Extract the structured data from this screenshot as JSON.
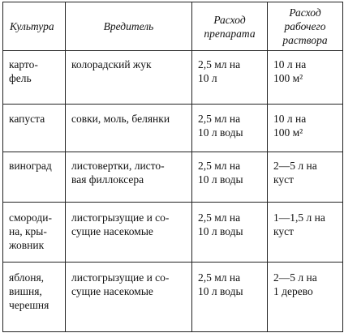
{
  "headers": {
    "culture": "Культура",
    "pest": "Вредитель",
    "dose_line1": "Расход",
    "dose_line2": "препарата",
    "solution_line1": "Расход",
    "solution_line2": "рабочего",
    "solution_line3": "раствора"
  },
  "rows": [
    {
      "culture": [
        "карто-",
        "фель"
      ],
      "pest": [
        "колорадский жук"
      ],
      "dose": [
        "2,5 мл на",
        "10 л"
      ],
      "solution": [
        "10 л на",
        "100 м²"
      ]
    },
    {
      "culture": [
        "капуста"
      ],
      "pest": [
        "совки, моль, белянки"
      ],
      "dose": [
        "2,5 мл на",
        "10 л воды"
      ],
      "solution": [
        "10 л на",
        "100 м²"
      ]
    },
    {
      "culture": [
        "виноград"
      ],
      "pest": [
        "листовертки, листо-",
        "вая филлоксера"
      ],
      "dose": [
        "2,5 мл на",
        "10 л воды"
      ],
      "solution": [
        "2—5 л на",
        "куст"
      ]
    },
    {
      "culture": [
        "смороди-",
        "на, кры-",
        "жовник"
      ],
      "pest": [
        "листогрызущие и со-",
        "сущие насекомые"
      ],
      "dose": [
        "2,5 мл на",
        "10 л воды"
      ],
      "solution": [
        "1—1,5 л на",
        "куст"
      ]
    },
    {
      "culture": [
        "яблоня,",
        "вишня,",
        "черешня"
      ],
      "pest": [
        "листогрызущие и со-",
        "сущие насекомые"
      ],
      "dose": [
        "2,5 мл на",
        "10 л воды"
      ],
      "solution": [
        "2—5 л на",
        "1 дерево"
      ]
    }
  ]
}
